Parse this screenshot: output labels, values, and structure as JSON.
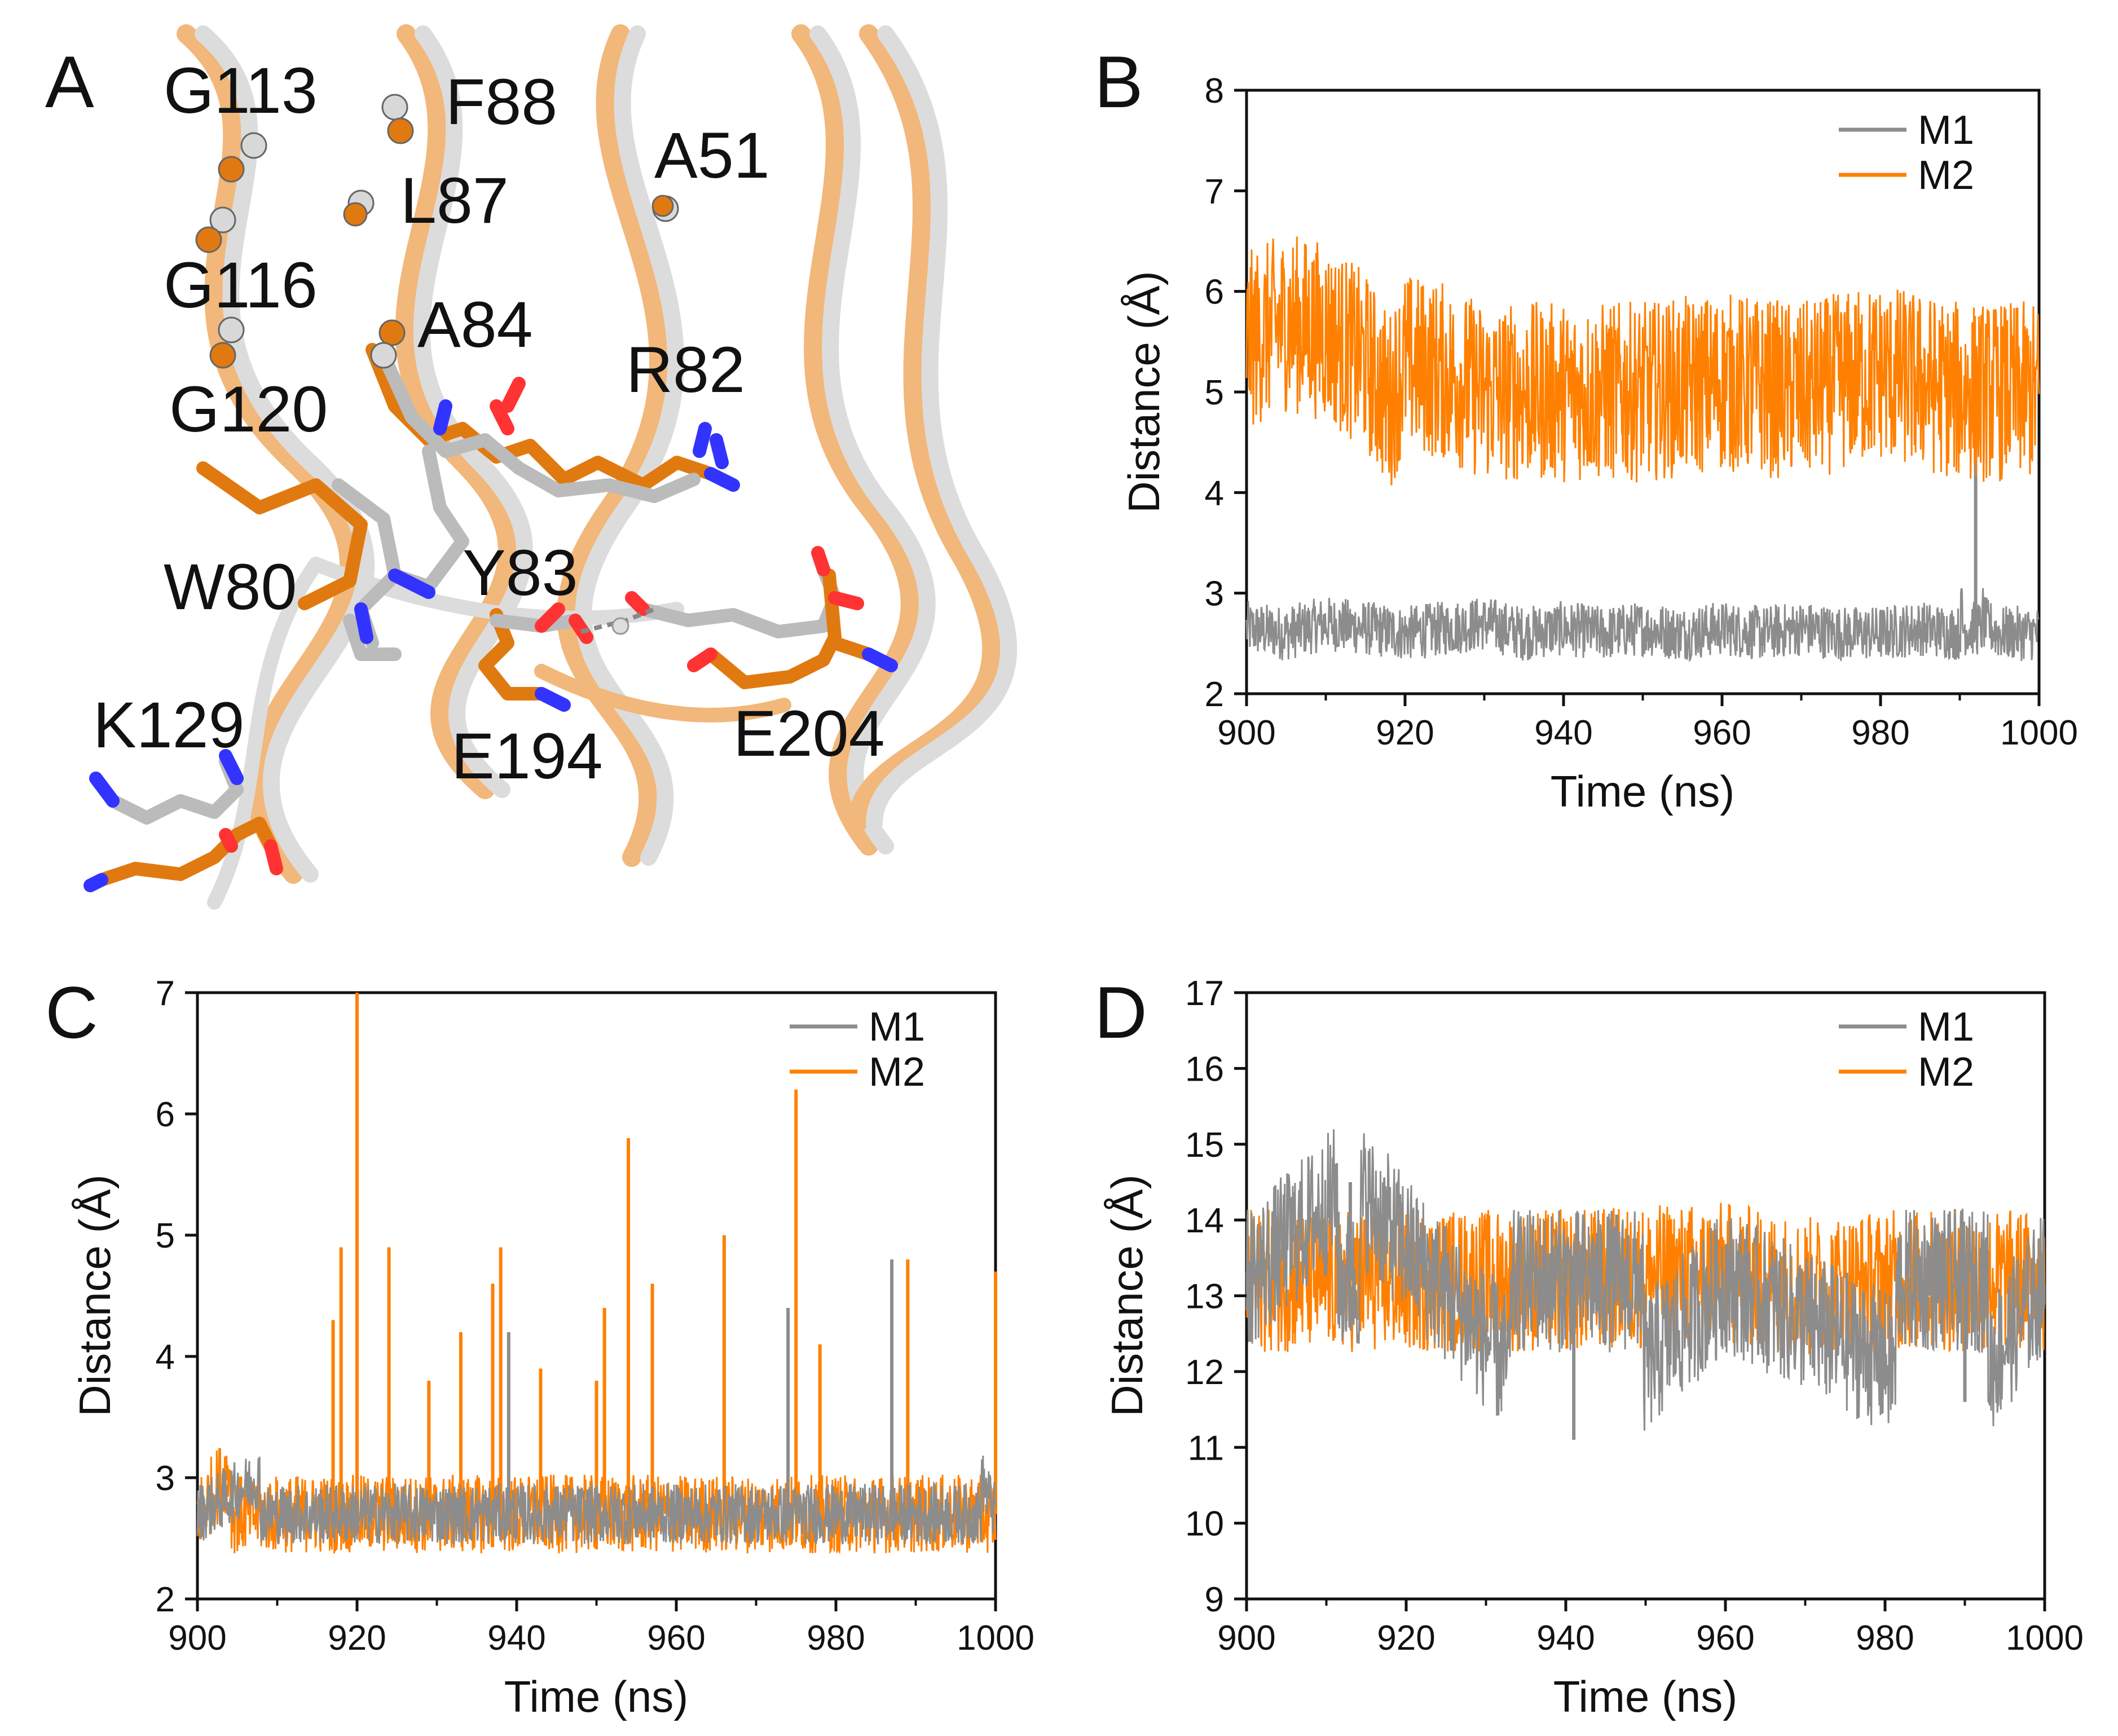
{
  "panels": {
    "A": {
      "letter": "A",
      "residues": [
        "G113",
        "F88",
        "A51",
        "L87",
        "G116",
        "A84",
        "R82",
        "G120",
        "W80",
        "Y83",
        "K129",
        "E194",
        "E204"
      ]
    }
  },
  "colors": {
    "M1": "#8c8c8c",
    "M2": "#ff8000",
    "ribbon_grey": "#d9d9d9",
    "ribbon_orange": "#f2b77a",
    "nitrogen": "#3333ff",
    "oxygen": "#ff3333"
  },
  "chart_data": [
    {
      "panel": "B",
      "type": "line",
      "xlabel": "Time (ns)",
      "ylabel": "Distance (Å)",
      "xlim": [
        900,
        1000
      ],
      "ylim": [
        2,
        8
      ],
      "xticks": [
        900,
        920,
        940,
        960,
        980,
        1000
      ],
      "yticks": [
        2,
        3,
        4,
        5,
        6,
        7,
        8
      ],
      "legend_position": "top-right",
      "series": [
        {
          "name": "M1",
          "color": "#8c8c8c",
          "mean": 2.65,
          "band": [
            2.4,
            2.95
          ],
          "x": [
            900,
            905,
            910,
            915,
            920,
            925,
            930,
            935,
            940,
            945,
            950,
            955,
            960,
            965,
            970,
            975,
            980,
            985,
            990,
            992,
            993,
            995,
            1000
          ],
          "values": [
            2.65,
            2.6,
            2.7,
            2.65,
            2.6,
            2.65,
            2.7,
            2.6,
            2.65,
            2.6,
            2.65,
            2.6,
            2.65,
            2.6,
            2.65,
            2.6,
            2.6,
            2.65,
            2.6,
            4.9,
            2.7,
            2.6,
            2.6
          ]
        },
        {
          "name": "M2",
          "color": "#ff8000",
          "mean": 5.1,
          "band": [
            4.4,
            6.2
          ],
          "x": [
            900,
            905,
            910,
            915,
            918,
            920,
            925,
            930,
            940,
            950,
            960,
            970,
            980,
            990,
            1000
          ],
          "values": [
            5.5,
            5.7,
            5.6,
            5.3,
            4.9,
            5.3,
            5.2,
            5.0,
            5.0,
            5.0,
            5.1,
            5.0,
            5.2,
            5.0,
            5.0
          ]
        }
      ]
    },
    {
      "panel": "C",
      "type": "line",
      "xlabel": "Time (ns)",
      "ylabel": "Distance (Å)",
      "xlim": [
        900,
        1000
      ],
      "ylim": [
        2,
        7
      ],
      "xticks": [
        900,
        920,
        940,
        960,
        980,
        1000
      ],
      "yticks": [
        2,
        3,
        4,
        5,
        6,
        7
      ],
      "legend_position": "top-right",
      "series": [
        {
          "name": "M2",
          "color": "#ff8000",
          "mean": 2.7,
          "band": [
            2.45,
            3.1
          ],
          "x": [
            900,
            917,
            918,
            920,
            924,
            929,
            933,
            937,
            938,
            943,
            950,
            951,
            954,
            957,
            966,
            975,
            978,
            989,
            1000
          ],
          "values": [
            2.7,
            4.3,
            4.9,
            7.0,
            4.9,
            3.8,
            4.2,
            4.6,
            4.9,
            3.9,
            3.8,
            4.4,
            5.8,
            4.6,
            5.0,
            6.2,
            4.1,
            4.8,
            4.7
          ]
        },
        {
          "name": "M1",
          "color": "#8c8c8c",
          "mean": 2.7,
          "band": [
            2.5,
            3.0
          ],
          "x": [
            900,
            939,
            974,
            987,
            1000
          ],
          "values": [
            2.7,
            4.2,
            4.4,
            4.8,
            2.7
          ]
        }
      ]
    },
    {
      "panel": "D",
      "type": "line",
      "xlabel": "Time (ns)",
      "ylabel": "Distance (Å)",
      "xlim": [
        900,
        1000
      ],
      "ylim": [
        9,
        17
      ],
      "xticks": [
        900,
        920,
        940,
        960,
        980,
        1000
      ],
      "yticks": [
        9,
        10,
        11,
        12,
        13,
        14,
        15,
        16,
        17
      ],
      "legend_position": "top-right",
      "series": [
        {
          "name": "M2",
          "color": "#ff8000",
          "mean": 13.2,
          "band": [
            12.2,
            14.1
          ],
          "x": [
            900,
            920,
            940,
            960,
            970,
            980,
            1000
          ],
          "values": [
            13.2,
            13.2,
            13.2,
            13.3,
            13.1,
            13.2,
            13.2
          ]
        },
        {
          "name": "M1",
          "color": "#8c8c8c",
          "mean": 13.2,
          "band": [
            12.3,
            14.2
          ],
          "x": [
            900,
            913,
            941,
            960,
            990,
            1000
          ],
          "values": [
            13.2,
            14.5,
            11.1,
            13.2,
            11.6,
            13.2
          ]
        }
      ]
    }
  ]
}
